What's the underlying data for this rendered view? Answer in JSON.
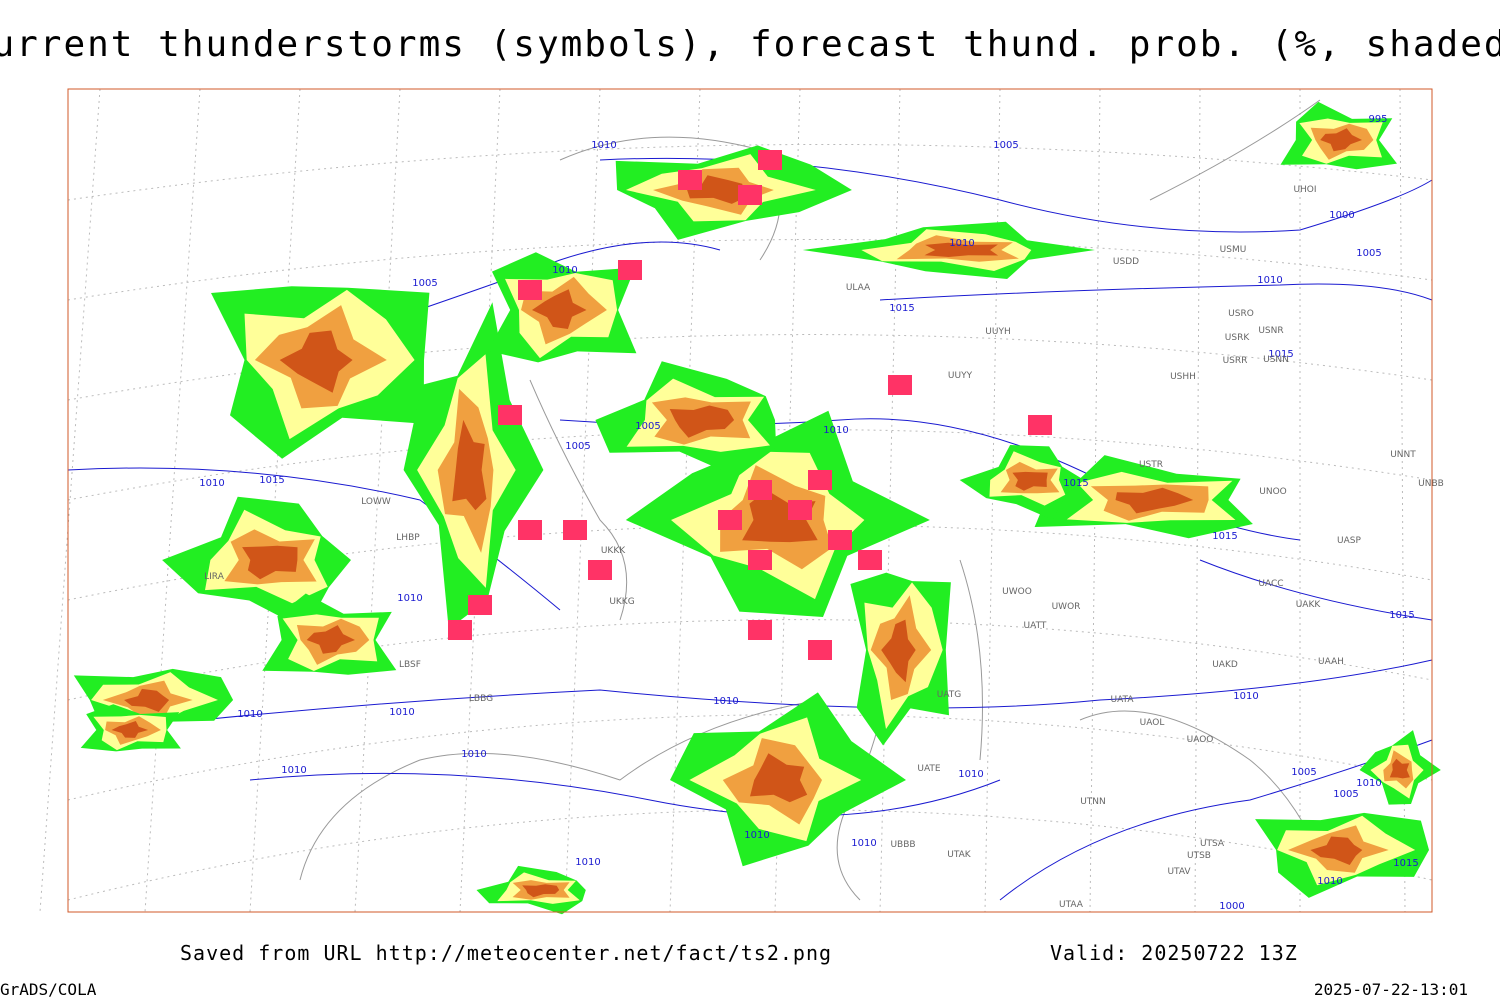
{
  "title": "Current thunderstorms (symbols), forecast thund. prob. (%, shaded)",
  "footer": {
    "source": "Saved from URL http://meteocenter.net/fact/ts2.png",
    "valid": "Valid: 20250722 13Z",
    "software": "GrADS/COLA",
    "timestamp": "2025-07-22-13:01"
  },
  "isobar_labels": [
    "1010",
    "1005",
    "995",
    "1000",
    "1005",
    "1010",
    "1010",
    "1005",
    "1015",
    "1010",
    "1015",
    "1005",
    "1005",
    "1010",
    "1010",
    "1015",
    "1015",
    "1015",
    "1010",
    "1015",
    "1010",
    "1010",
    "1010",
    "1010",
    "1010",
    "1010",
    "1010",
    "1010",
    "1010",
    "1010",
    "1005",
    "1005",
    "1010",
    "1015",
    "1010",
    "1000"
  ],
  "stations": [
    "ULAA",
    "UUYH",
    "UUYY",
    "USHH",
    "USRO",
    "USRK",
    "USNR",
    "USRR",
    "USNN",
    "USMU",
    "USDD",
    "UHOI",
    "USTR",
    "UNNT",
    "UNBB",
    "UNOO",
    "UASP",
    "UACC",
    "UAKK",
    "UWOO",
    "UWOR",
    "UATT",
    "UAKD",
    "UAAH",
    "UATA",
    "UAOL",
    "UAOO",
    "UTNN",
    "UTSA",
    "UTSB",
    "UTAV",
    "UTAA",
    "UTAK",
    "UBBB",
    "UATE",
    "UATG",
    "UKKK",
    "UKKG",
    "LIRA",
    "LOWW",
    "LHBP",
    "LBSF",
    "LBBG"
  ]
}
